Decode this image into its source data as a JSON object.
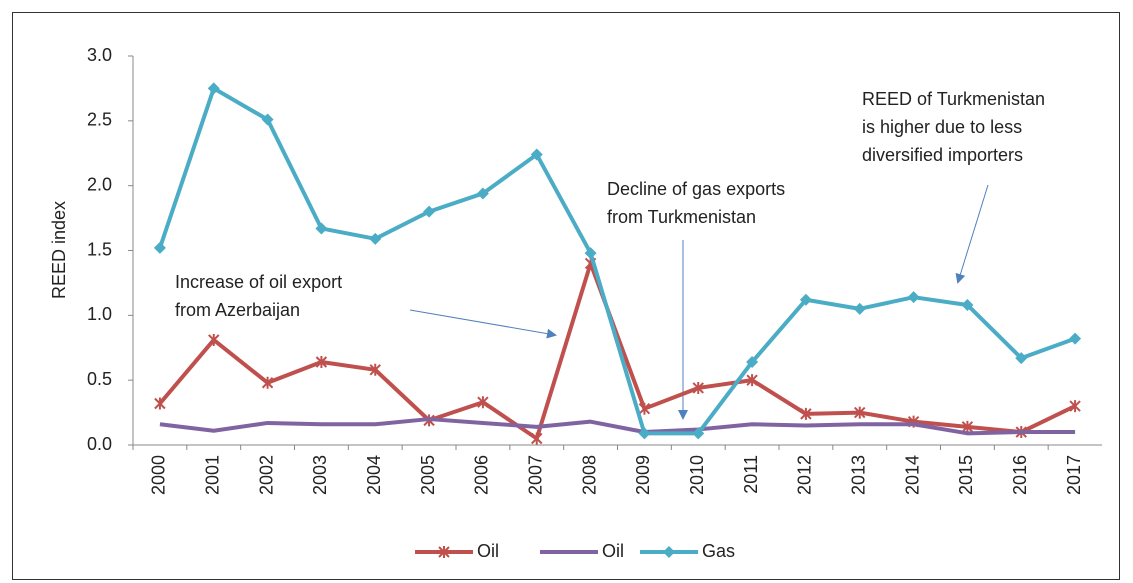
{
  "chart_data": {
    "type": "line",
    "y_label": "REED index",
    "categories": [
      "2000",
      "2001",
      "2002",
      "2003",
      "2004",
      "2005",
      "2006",
      "2007",
      "2008",
      "2009",
      "2010",
      "2011",
      "2012",
      "2013",
      "2014",
      "2015",
      "2016",
      "2017"
    ],
    "series": [
      {
        "name": "Oil",
        "color": "#c0504d",
        "marker": "asterisk",
        "values": [
          0.32,
          0.81,
          0.48,
          0.64,
          0.58,
          0.19,
          0.33,
          0.05,
          1.4,
          0.28,
          0.44,
          0.5,
          0.24,
          0.25,
          0.18,
          0.14,
          0.1,
          0.3
        ]
      },
      {
        "name": "Oil",
        "color": "#8064a2",
        "marker": "none",
        "values": [
          0.16,
          0.11,
          0.17,
          0.16,
          0.16,
          0.2,
          0.17,
          0.14,
          0.18,
          0.1,
          0.12,
          0.16,
          0.15,
          0.16,
          0.16,
          0.09,
          0.1,
          0.1
        ]
      },
      {
        "name": "Gas",
        "color": "#4bacc6",
        "marker": "diamond",
        "values": [
          1.52,
          2.75,
          2.51,
          1.67,
          1.59,
          1.8,
          1.94,
          2.24,
          1.48,
          0.09,
          0.09,
          0.64,
          1.12,
          1.05,
          1.14,
          1.08,
          0.67,
          0.82
        ]
      }
    ],
    "ylim": [
      0,
      3
    ],
    "yticks": [
      {
        "value": 0,
        "label": "0.0"
      },
      0.5,
      {
        "value": 1,
        "label": "1.0"
      },
      1.5,
      {
        "value": 2,
        "label": "2.0"
      },
      2.5,
      {
        "value": 3,
        "label": "3.0"
      }
    ],
    "grid": false,
    "legend": "bottom",
    "annotations": [
      {
        "lines": [
          "Increase of oil export",
          "from Azerbaijan"
        ]
      },
      {
        "lines": [
          "Decline of gas exports",
          "from Turkmenistan"
        ]
      },
      {
        "lines": [
          "REED of Turkmenistan",
          "is higher due to less",
          "diversified importers"
        ]
      }
    ]
  }
}
